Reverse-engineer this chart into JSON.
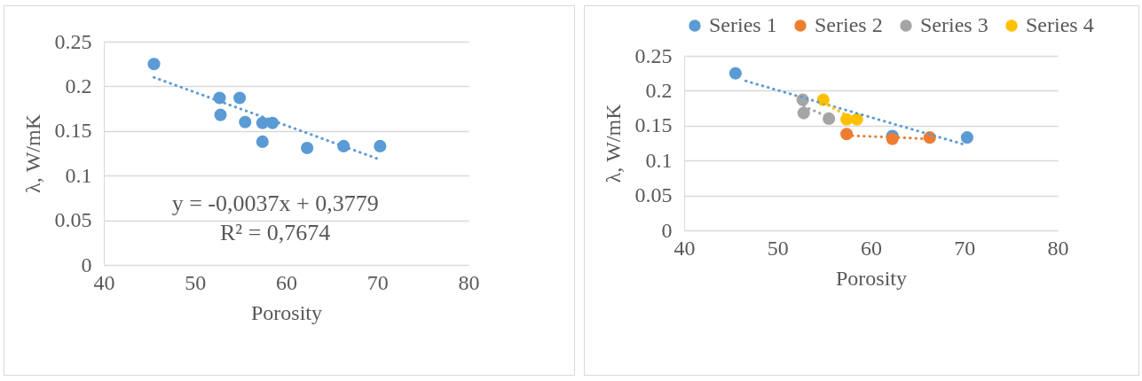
{
  "chart_data": [
    {
      "type": "scatter",
      "xlabel": "Porosity",
      "ylabel": "λ, W/mK",
      "xlim": [
        40,
        80
      ],
      "xticks": [
        40,
        50,
        60,
        70,
        80
      ],
      "ylim": [
        0,
        0.25
      ],
      "yticks": [
        0,
        0.05,
        0.1,
        0.15,
        0.2,
        0.25
      ],
      "grid": "y",
      "legend": false,
      "marker": "circle",
      "annotations": [
        "y = -0,0037x + 0,3779",
        "R² = 0,7674"
      ],
      "series": [
        {
          "type": "scatter",
          "color": "#5b9bd5",
          "x": [
            45.5,
            52.7,
            54.9,
            52.8,
            55.5,
            57.4,
            58.5,
            57.4,
            62.3,
            66.3,
            70.3
          ],
          "values": [
            0.225,
            0.187,
            0.187,
            0.168,
            0.16,
            0.159,
            0.159,
            0.138,
            0.131,
            0.133,
            0.133
          ]
        },
        {
          "type": "line",
          "line_style": "dotted",
          "marker": "none",
          "color": "#5b9bd5",
          "x": [
            45.5,
            70
          ],
          "values": [
            0.21,
            0.119
          ]
        }
      ]
    },
    {
      "type": "scatter",
      "xlabel": "Porosity",
      "ylabel": "λ, W/mK",
      "xlim": [
        40,
        80
      ],
      "xticks": [
        40,
        50,
        60,
        70,
        80
      ],
      "ylim": [
        0,
        0.25
      ],
      "yticks": [
        0,
        0.05,
        0.1,
        0.15,
        0.2,
        0.25
      ],
      "grid": "y",
      "legend": "top",
      "marker": "circle",
      "series": [
        {
          "type": "scatter",
          "name": "Series 1",
          "color": "#5b9bd5",
          "x": [
            45.5,
            62.3,
            70.3
          ],
          "values": [
            0.225,
            0.135,
            0.133
          ]
        },
        {
          "type": "scatter",
          "name": "Series 2",
          "color": "#ed7d31",
          "x": [
            57.4,
            62.3,
            66.3
          ],
          "values": [
            0.138,
            0.131,
            0.133
          ]
        },
        {
          "type": "scatter",
          "name": "Series 3",
          "color": "#a5a5a5",
          "x": [
            52.7,
            52.8,
            55.5
          ],
          "values": [
            0.187,
            0.168,
            0.16
          ]
        },
        {
          "type": "scatter",
          "name": "Series 4",
          "color": "#ffc000",
          "x": [
            54.9,
            57.4,
            58.5
          ],
          "values": [
            0.187,
            0.159,
            0.159
          ]
        },
        {
          "type": "line",
          "line_style": "dotted",
          "marker": "none",
          "color": "#5b9bd5",
          "x": [
            46.6,
            70
          ],
          "values": [
            0.214,
            0.123
          ]
        },
        {
          "type": "line",
          "line_style": "dotted",
          "marker": "none",
          "color": "#ed7d31",
          "x": [
            57.4,
            66.3
          ],
          "values": [
            0.136,
            0.131
          ]
        },
        {
          "type": "line",
          "line_style": "dotted",
          "marker": "none",
          "color": "#a5a5a5",
          "x": [
            52.8,
            55.5
          ],
          "values": [
            0.178,
            0.162
          ]
        },
        {
          "type": "line",
          "line_style": "dotted",
          "marker": "none",
          "color": "#ffc000",
          "x": [
            54.9,
            58.5
          ],
          "values": [
            0.183,
            0.157
          ]
        }
      ]
    }
  ]
}
